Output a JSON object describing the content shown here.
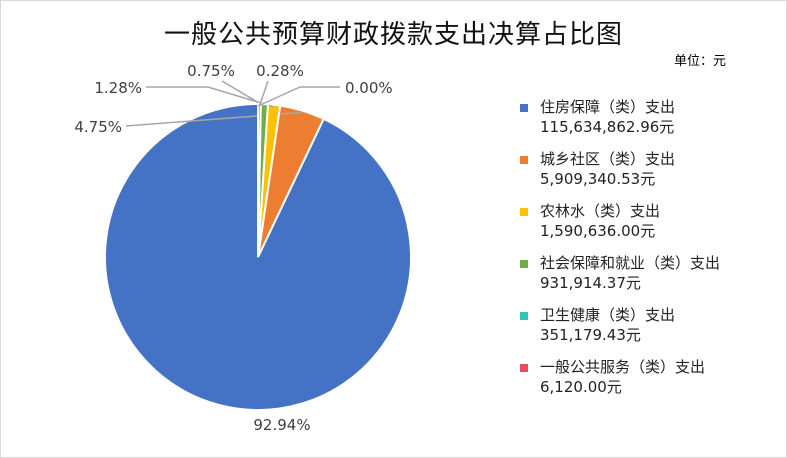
{
  "chart_data": {
    "type": "pie",
    "title": "一般公共预算财政拨款支出决算占比图",
    "unit_label": "单位：元",
    "series": [
      {
        "name": "住房保障（类）支出",
        "value_text": "115,634,862.96元",
        "value": 115634862.96,
        "percent": 92.94,
        "percent_label": "92.94%",
        "color": "#4472C4"
      },
      {
        "name": "城乡社区（类）支出",
        "value_text": "5,909,340.53元",
        "value": 5909340.53,
        "percent": 4.75,
        "percent_label": "4.75%",
        "color": "#ED7D31"
      },
      {
        "name": "农林水（类）支出",
        "value_text": "1,590,636.00元",
        "value": 1590636.0,
        "percent": 1.28,
        "percent_label": "1.28%",
        "color": "#FFC000"
      },
      {
        "name": "社会保障和就业（类）支出",
        "value_text": "931,914.37元",
        "value": 931914.37,
        "percent": 0.75,
        "percent_label": "0.75%",
        "color": "#70AD47"
      },
      {
        "name": "卫生健康（类）支出",
        "value_text": "351,179.43元",
        "value": 351179.43,
        "percent": 0.28,
        "percent_label": "0.28%",
        "color": "#2EC4B6"
      },
      {
        "name": "一般公共服务（类）支出",
        "value_text": "6,120.00元",
        "value": 6120.0,
        "percent": 0.0,
        "percent_label": "0.00%",
        "color": "#E84C61"
      }
    ],
    "legend_position": "right"
  }
}
